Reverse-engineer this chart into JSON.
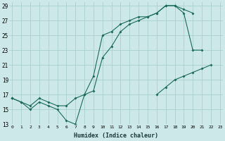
{
  "xlabel": "Humidex (Indice chaleur)",
  "bg_color": "#cce8e8",
  "grid_color": "#aacece",
  "line_color": "#1a6b5a",
  "yticks": [
    13,
    15,
    17,
    19,
    21,
    23,
    25,
    27,
    29
  ],
  "xticks": [
    0,
    1,
    2,
    3,
    4,
    5,
    6,
    7,
    8,
    9,
    10,
    11,
    12,
    13,
    14,
    15,
    16,
    17,
    18,
    19,
    20,
    21,
    22,
    23
  ],
  "line1_x": [
    0,
    1,
    2,
    3,
    4,
    5,
    6,
    7,
    8,
    9,
    10,
    11,
    12,
    13,
    14,
    15,
    16,
    17,
    18,
    19,
    20,
    21
  ],
  "line1_y": [
    16.5,
    16,
    15,
    16,
    15.5,
    15,
    13.5,
    13,
    17,
    19.5,
    25,
    25.5,
    26.5,
    27,
    27.5,
    27.5,
    28,
    29,
    29,
    28,
    23,
    23
  ],
  "line2_x": [
    0,
    1,
    2,
    3,
    4,
    5,
    6,
    7,
    8,
    9,
    10,
    11,
    12,
    13,
    14,
    15,
    16,
    17,
    18,
    19,
    20
  ],
  "line2_y": [
    16.5,
    16,
    15.5,
    16.5,
    16,
    15.5,
    15.5,
    16.5,
    17,
    17.5,
    22,
    23.5,
    25.5,
    26.5,
    27,
    27.5,
    28,
    29,
    29,
    28.5,
    28
  ],
  "line3_x": [
    0,
    16,
    17,
    18,
    19,
    20,
    21,
    22
  ],
  "line3_y": [
    16.5,
    17,
    18,
    19,
    19.5,
    20,
    20.5,
    21
  ]
}
